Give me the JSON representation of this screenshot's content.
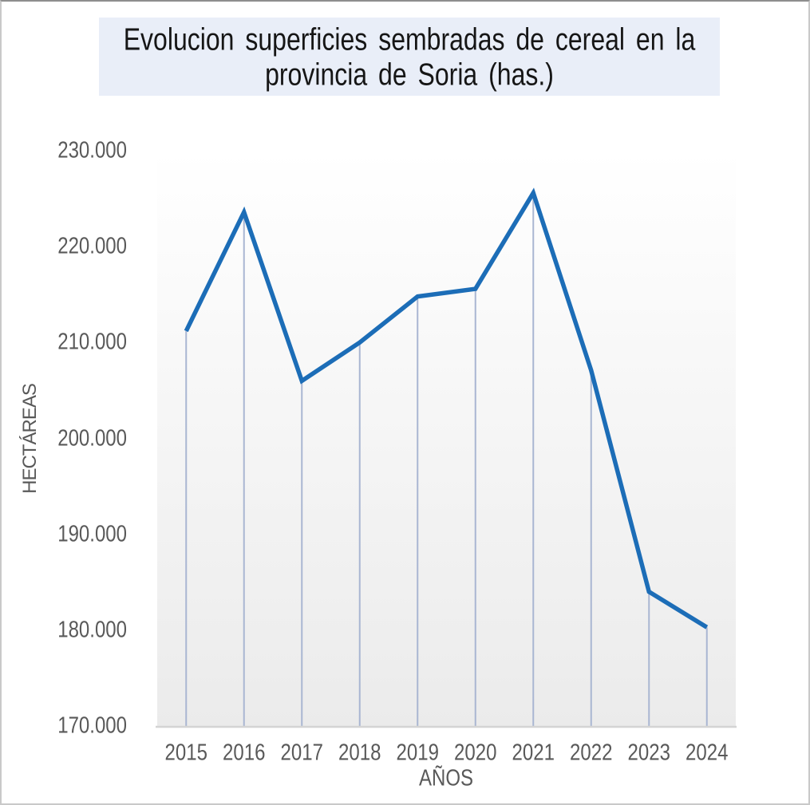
{
  "chart_data": {
    "type": "line",
    "title": "Evolucion superficies sembradas de cereal en la provincia de Soria (has.)",
    "title_lines": [
      "Evolucion superficies sembradas de cereal en la",
      "provincia de Soria (has.)"
    ],
    "xlabel": "AÑOS",
    "ylabel": "HECTÁREAS",
    "categories": [
      "2015",
      "2016",
      "2017",
      "2018",
      "2019",
      "2020",
      "2021",
      "2022",
      "2023",
      "2024"
    ],
    "values": [
      211200,
      223600,
      206000,
      210000,
      214800,
      215600,
      225600,
      207100,
      184000,
      180300
    ],
    "values_note": "estimated from pixel positions against axis ticks",
    "ylim": [
      170000,
      230000
    ],
    "ytick_step": 10000,
    "ytick_labels": [
      "230.000",
      "220.000",
      "210.000",
      "200.000",
      "190.000",
      "180.000",
      "170.000"
    ],
    "grid": "none",
    "drop_lines": true,
    "legend": "none",
    "colors": {
      "line": "#1c6db7",
      "drop_line": "#a9b6d2",
      "axis_line": "#d4d4d4",
      "title_bg": "#e9eef8",
      "title_text": "#161616",
      "label_text": "#595959",
      "plot_bg_top": "#ffffff",
      "plot_bg_mid": "#f6f6f6",
      "plot_bg_bottom": "#ebebeb"
    }
  }
}
